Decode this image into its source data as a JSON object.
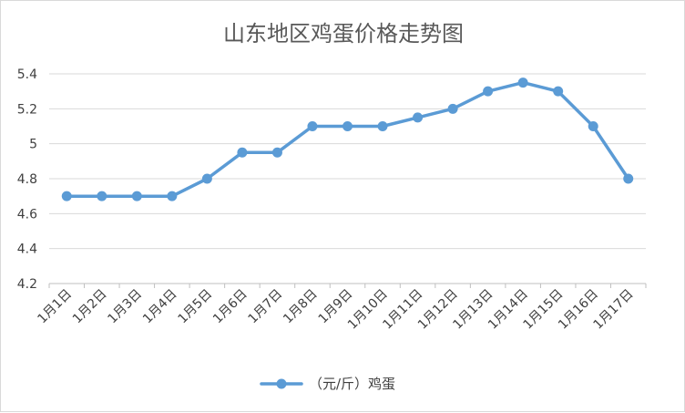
{
  "chart_data": {
    "type": "line",
    "title": "山东地区鸡蛋价格走势图",
    "categories": [
      "1月1日",
      "1月2日",
      "1月3日",
      "1月4日",
      "1月5日",
      "1月6日",
      "1月7日",
      "1月8日",
      "1月9日",
      "1月10日",
      "1月11日",
      "1月12日",
      "1月13日",
      "1月14日",
      "1月15日",
      "1月16日",
      "1月17日"
    ],
    "series": [
      {
        "name": "（元/斤）鸡蛋",
        "values": [
          4.7,
          4.7,
          4.7,
          4.7,
          4.8,
          4.95,
          4.95,
          5.1,
          5.1,
          5.1,
          5.15,
          5.2,
          5.3,
          5.35,
          5.3,
          5.1,
          4.8
        ],
        "color": "#5b9bd5"
      }
    ],
    "y_ticks": [
      "4.2",
      "4.4",
      "4.6",
      "4.8",
      "5",
      "5.2",
      "5.4"
    ],
    "ylim": [
      4.2,
      5.4
    ],
    "grid": true,
    "legend_position": "bottom"
  }
}
